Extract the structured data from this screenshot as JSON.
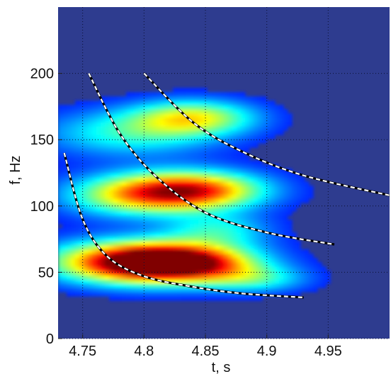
{
  "chart_data": {
    "type": "heatmap",
    "title": "",
    "xlabel": "t, s",
    "ylabel": "f, Hz",
    "xlim": [
      4.73,
      5.0
    ],
    "ylim": [
      0,
      250
    ],
    "xticks": [
      "4.75",
      "4.8",
      "4.85",
      "4.9",
      "4.95"
    ],
    "xtick_values": [
      4.75,
      4.8,
      4.85,
      4.9,
      4.95
    ],
    "yticks": [
      "0",
      "50",
      "100",
      "150",
      "200"
    ],
    "ytick_values": [
      0,
      50,
      100,
      150,
      200
    ],
    "grid": true,
    "colormap": "jet",
    "background_color": "#2e3c8f",
    "intensity_blobs": [
      {
        "t": 4.8,
        "f": 58,
        "sigma_t": 0.05,
        "sigma_f": 11,
        "intensity": 1.0
      },
      {
        "t": 4.83,
        "f": 57,
        "sigma_t": 0.04,
        "sigma_f": 9,
        "intensity": 0.55
      },
      {
        "t": 4.84,
        "f": 112,
        "sigma_t": 0.04,
        "sigma_f": 10,
        "intensity": 0.78
      },
      {
        "t": 4.79,
        "f": 108,
        "sigma_t": 0.04,
        "sigma_f": 11,
        "intensity": 0.45
      },
      {
        "t": 4.84,
        "f": 167,
        "sigma_t": 0.035,
        "sigma_f": 9,
        "intensity": 0.5
      },
      {
        "t": 4.79,
        "f": 155,
        "sigma_t": 0.05,
        "sigma_f": 12,
        "intensity": 0.32
      },
      {
        "t": 4.86,
        "f": 82,
        "sigma_t": 0.03,
        "sigma_f": 9,
        "intensity": 0.28
      },
      {
        "t": 4.89,
        "f": 45,
        "sigma_t": 0.03,
        "sigma_f": 7,
        "intensity": 0.28
      }
    ],
    "series": [
      {
        "style": "dashed-white",
        "x": [
          4.735,
          4.75,
          4.77,
          4.8,
          4.84,
          4.88,
          4.93
        ],
        "y": [
          140,
          90,
          62,
          47,
          39,
          34,
          31
        ]
      },
      {
        "style": "dashed-white",
        "x": [
          4.755,
          4.78,
          4.81,
          4.85,
          4.9,
          4.955
        ],
        "y": [
          200,
          155,
          122,
          95,
          80,
          71
        ]
      },
      {
        "style": "dashed-white",
        "x": [
          4.8,
          4.84,
          4.88,
          4.93,
          5.0
        ],
        "y": [
          200,
          163,
          141,
          123,
          108
        ]
      }
    ]
  }
}
